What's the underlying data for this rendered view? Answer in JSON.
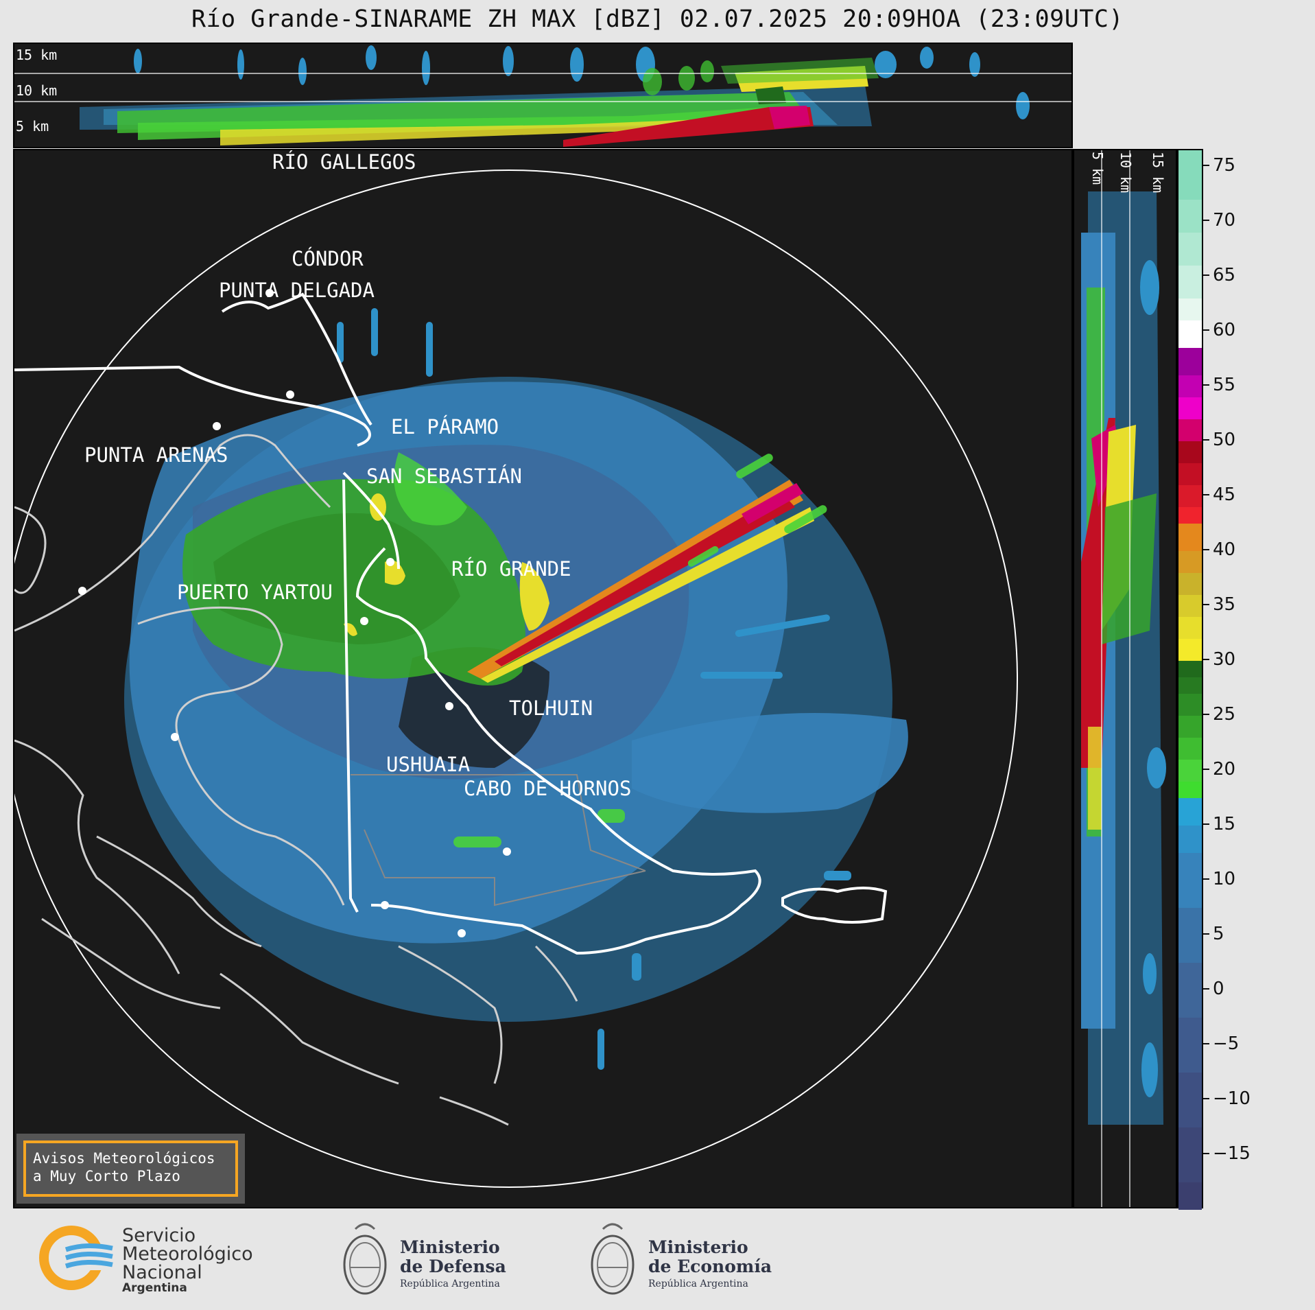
{
  "title": "Río Grande-SINARAME ZH MAX [dBZ] 02.07.2025 20:09HOA (23:09UTC)",
  "top_panel": {
    "height_labels": [
      "15 km",
      "10 km",
      "5 km"
    ]
  },
  "side_panel": {
    "height_labels": [
      "5 km",
      "10 km",
      "15 km"
    ]
  },
  "colorbar": {
    "unit": "dBZ",
    "ticks": [
      "75",
      "70",
      "65",
      "60",
      "55",
      "50",
      "45",
      "40",
      "35",
      "30",
      "25",
      "20",
      "15",
      "10",
      "5",
      "0",
      "−5",
      "−10",
      "−15"
    ],
    "range": [
      -20,
      76.5
    ],
    "segments": [
      {
        "from": -20,
        "to": -17.5,
        "color": "#3b3f6e"
      },
      {
        "from": -17.5,
        "to": -12.5,
        "color": "#3d4777"
      },
      {
        "from": -12.5,
        "to": -7.5,
        "color": "#3e5082"
      },
      {
        "from": -7.5,
        "to": -2.5,
        "color": "#3f5b8e"
      },
      {
        "from": -2.5,
        "to": 2.5,
        "color": "#3f6699"
      },
      {
        "from": 2.5,
        "to": 7.5,
        "color": "#3a73a8"
      },
      {
        "from": 7.5,
        "to": 12.5,
        "color": "#3783bb"
      },
      {
        "from": 12.5,
        "to": 15,
        "color": "#2f92c9"
      },
      {
        "from": 15,
        "to": 17.5,
        "color": "#28a3d6"
      },
      {
        "from": 17.5,
        "to": 19,
        "color": "#3fdc2f"
      },
      {
        "from": 19,
        "to": 21,
        "color": "#4ad33a"
      },
      {
        "from": 21,
        "to": 23,
        "color": "#3fbd31"
      },
      {
        "from": 23,
        "to": 25,
        "color": "#36a52b"
      },
      {
        "from": 25,
        "to": 27,
        "color": "#2d8d26"
      },
      {
        "from": 27,
        "to": 28.5,
        "color": "#277a21"
      },
      {
        "from": 28.5,
        "to": 30,
        "color": "#206a1c"
      },
      {
        "from": 30,
        "to": 32,
        "color": "#f4ea2a"
      },
      {
        "from": 32,
        "to": 34,
        "color": "#e7de2c"
      },
      {
        "from": 34,
        "to": 36,
        "color": "#d8cb2c"
      },
      {
        "from": 36,
        "to": 38,
        "color": "#c9b22b"
      },
      {
        "from": 38,
        "to": 40,
        "color": "#d79a24"
      },
      {
        "from": 40,
        "to": 42.5,
        "color": "#e4881d"
      },
      {
        "from": 42.5,
        "to": 44,
        "color": "#f0232d"
      },
      {
        "from": 44,
        "to": 46,
        "color": "#da1a2a"
      },
      {
        "from": 46,
        "to": 48,
        "color": "#c30f24"
      },
      {
        "from": 48,
        "to": 50,
        "color": "#a8071c"
      },
      {
        "from": 50,
        "to": 52,
        "color": "#d3006d"
      },
      {
        "from": 52,
        "to": 54,
        "color": "#ee00c9"
      },
      {
        "from": 54,
        "to": 56,
        "color": "#c300b2"
      },
      {
        "from": 56,
        "to": 58.5,
        "color": "#9c009b"
      },
      {
        "from": 58.5,
        "to": 61,
        "color": "#ffffff"
      },
      {
        "from": 61,
        "to": 63,
        "color": "#e7f7ef"
      },
      {
        "from": 63,
        "to": 66,
        "color": "#c9efe0"
      },
      {
        "from": 66,
        "to": 69,
        "color": "#b0e8d2"
      },
      {
        "from": 69,
        "to": 72,
        "color": "#9be2c6"
      },
      {
        "from": 72,
        "to": 76.5,
        "color": "#86dbbb"
      }
    ]
  },
  "cities": [
    {
      "name": "RÍO GALLEGOS"
    },
    {
      "name": "CÓNDOR"
    },
    {
      "name": "PUNTA DELGADA"
    },
    {
      "name": "EL PÁRAMO"
    },
    {
      "name": "PUNTA ARENAS"
    },
    {
      "name": "SAN SEBASTIÁN"
    },
    {
      "name": "RÍO GRANDE"
    },
    {
      "name": "PUERTO YARTOU"
    },
    {
      "name": "TOLHUIN"
    },
    {
      "name": "USHUAIA"
    },
    {
      "name": "CABO DE HORNOS"
    }
  ],
  "notice": {
    "line1": "Avisos Meteorológicos",
    "line2": "a Muy Corto Plazo"
  },
  "footer": {
    "smn": {
      "line1": "Servicio",
      "line2": "Meteorológico",
      "line3": "Nacional",
      "line4": "Argentina"
    },
    "defensa": {
      "line1": "Ministerio",
      "line2": "de Defensa",
      "line3": "República Argentina"
    },
    "economia": {
      "line1": "Ministerio",
      "line2": "de Economía",
      "line3": "República Argentina"
    }
  }
}
